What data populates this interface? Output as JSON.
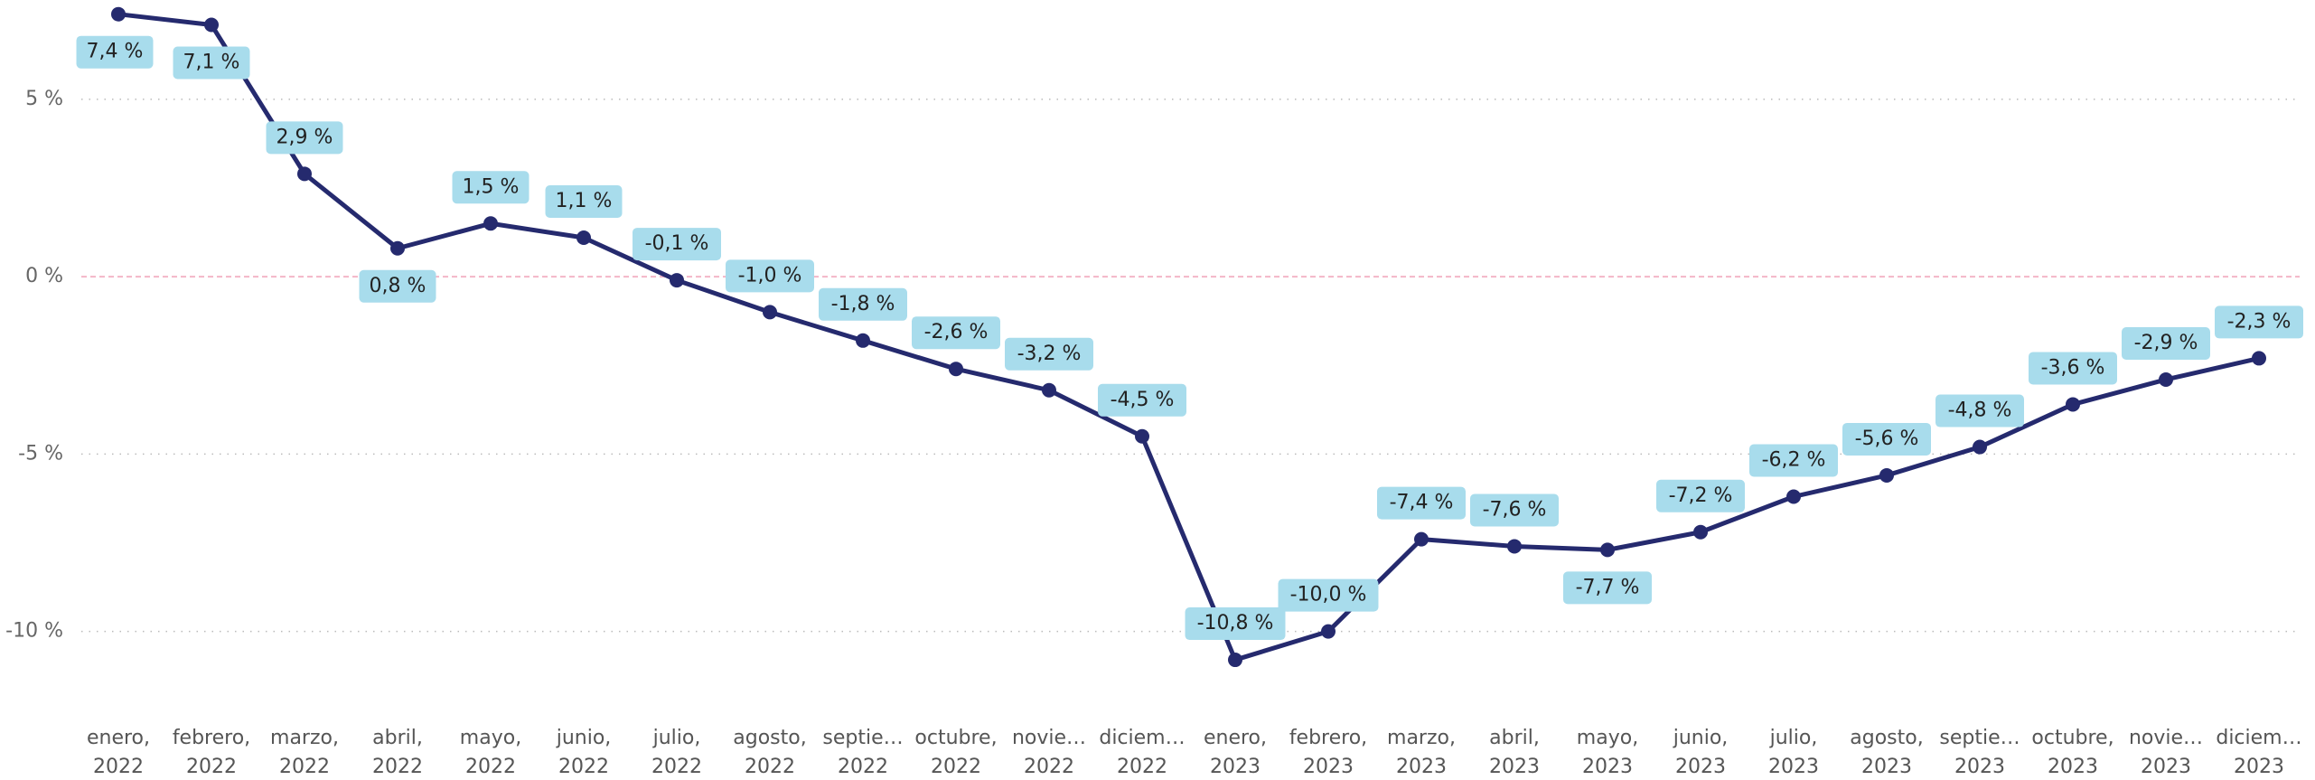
{
  "chart_data": {
    "type": "line",
    "categories": [
      "enero, 2022",
      "febrero, 2022",
      "marzo, 2022",
      "abril, 2022",
      "mayo, 2022",
      "junio, 2022",
      "julio, 2022",
      "agosto, 2022",
      "septie… 2022",
      "octubre, 2022",
      "novie… 2022",
      "diciem… 2022",
      "enero, 2023",
      "febrero, 2023",
      "marzo, 2023",
      "abril, 2023",
      "mayo, 2023",
      "junio, 2023",
      "julio, 2023",
      "agosto, 2023",
      "septie… 2023",
      "octubre, 2023",
      "novie… 2023",
      "diciem… 2023"
    ],
    "series": [
      {
        "color": "#252a6e",
        "values": [
          7.4,
          7.1,
          2.9,
          0.8,
          1.5,
          1.1,
          -0.1,
          -1.0,
          -1.8,
          -2.6,
          -3.2,
          -4.5,
          -10.8,
          -10.0,
          -7.4,
          -7.6,
          -7.7,
          -7.2,
          -6.2,
          -5.6,
          -4.8,
          -3.6,
          -2.9,
          -2.3
        ],
        "value_labels": [
          "7,4 %",
          "7,1 %",
          "2,9 %",
          "0,8 %",
          "1,5 %",
          "1,1 %",
          "-0,1 %",
          "-1,0 %",
          "-1,8 %",
          "-2,6 %",
          "-3,2 %",
          "-4,5 %",
          "-10,8 %",
          "-10,0 %",
          "-7,4 %",
          "-7,6 %",
          "-7,7 %",
          "-7,2 %",
          "-6,2 %",
          "-5,6 %",
          "-4,8 %",
          "-3,6 %",
          "-2,9 %",
          "-2,3 %"
        ]
      }
    ],
    "ylim": [
      -12.2,
      7.8
    ],
    "yticks": [
      {
        "value": -10,
        "label": "-10 %"
      },
      {
        "value": -5,
        "label": "-5 %"
      },
      {
        "value": 0,
        "label": "0 %"
      },
      {
        "value": 5,
        "label": "5 %"
      }
    ],
    "grid": true,
    "label_color": "#a8dcec"
  }
}
